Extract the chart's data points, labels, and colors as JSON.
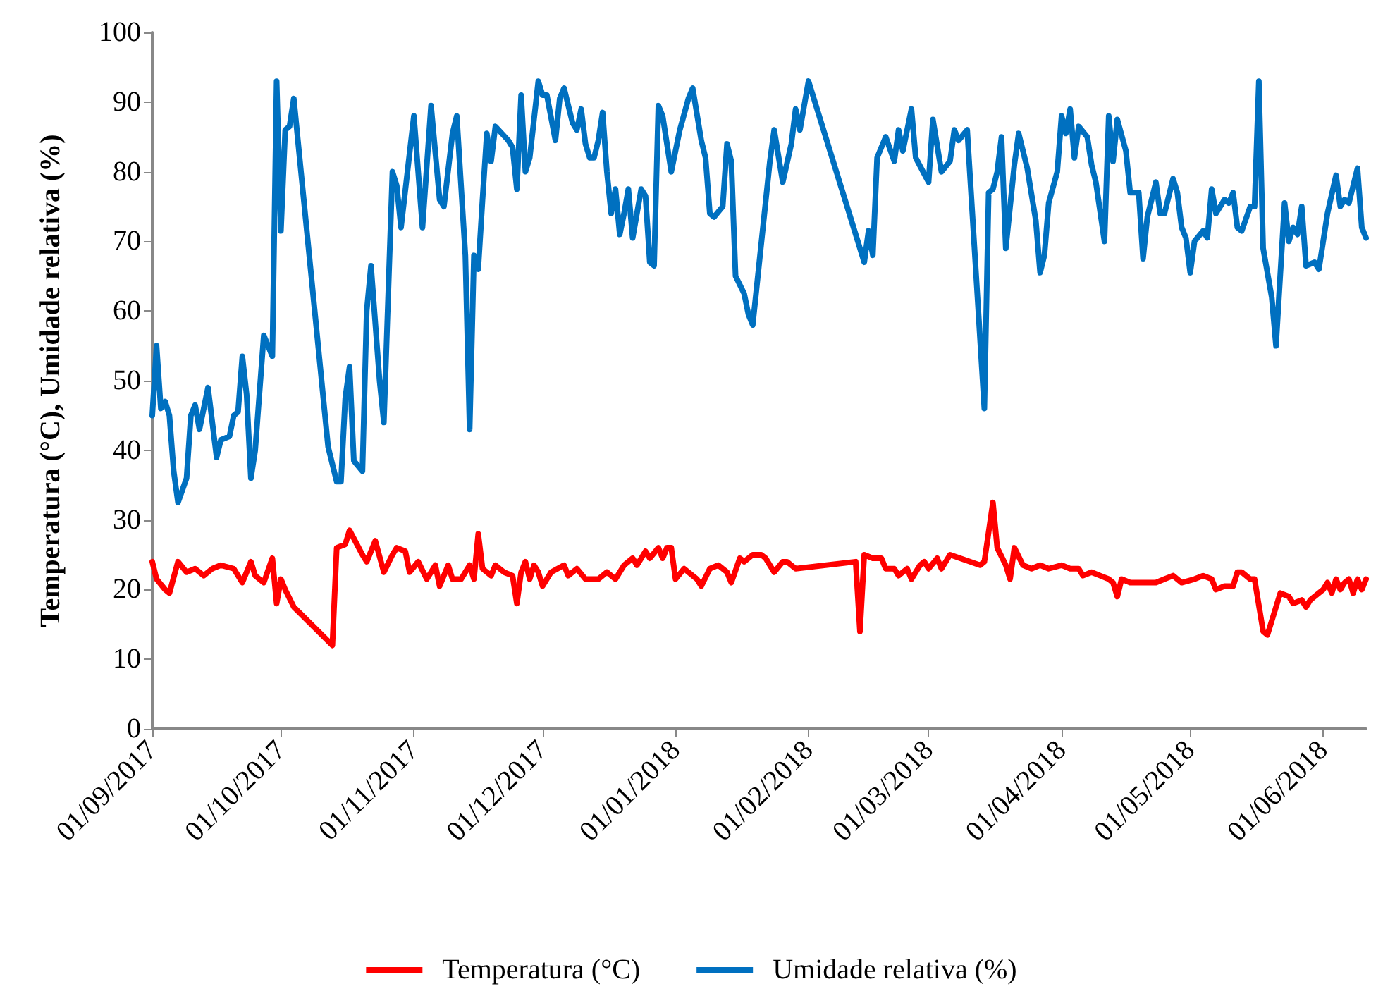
{
  "chart_data": {
    "type": "line",
    "ylabel": "Temperatura (°C), Umidade relativa (%)",
    "legend": "bottom",
    "grid": false,
    "marker": "none",
    "line_style": "solid",
    "xlim": [
      "2017-09-01",
      "2018-06-11"
    ],
    "xticks": [
      {
        "value": "2017-09-01",
        "label": "01/09/2017"
      },
      {
        "value": "2017-10-01",
        "label": "01/10/2017"
      },
      {
        "value": "2017-11-01",
        "label": "01/11/2017"
      },
      {
        "value": "2017-12-01",
        "label": "01/12/2017"
      },
      {
        "value": "2018-01-01",
        "label": "01/01/2018"
      },
      {
        "value": "2018-02-01",
        "label": "01/02/2018"
      },
      {
        "value": "2018-03-01",
        "label": "01/03/2018"
      },
      {
        "value": "2018-04-01",
        "label": "01/04/2018"
      },
      {
        "value": "2018-05-01",
        "label": "01/05/2018"
      },
      {
        "value": "2018-06-01",
        "label": "01/06/2018"
      }
    ],
    "ylim": [
      0,
      100
    ],
    "yticks": [
      0,
      10,
      20,
      30,
      40,
      50,
      60,
      70,
      80,
      90,
      100
    ],
    "series": [
      {
        "name": "Temperatura (°C)",
        "color": "#ff0000",
        "x": [
          "2017-09-01",
          "2017-09-02",
          "2017-09-04",
          "2017-09-05",
          "2017-09-07",
          "2017-09-09",
          "2017-09-11",
          "2017-09-13",
          "2017-09-15",
          "2017-09-17",
          "2017-09-20",
          "2017-09-22",
          "2017-09-24",
          "2017-09-25",
          "2017-09-27",
          "2017-09-29",
          "2017-09-30",
          "2017-10-01",
          "2017-10-02",
          "2017-10-04",
          "2017-10-13",
          "2017-10-14",
          "2017-10-16",
          "2017-10-17",
          "2017-10-20",
          "2017-10-21",
          "2017-10-23",
          "2017-10-25",
          "2017-10-27",
          "2017-10-28",
          "2017-10-30",
          "2017-10-31",
          "2017-11-02",
          "2017-11-04",
          "2017-11-06",
          "2017-11-07",
          "2017-11-09",
          "2017-11-10",
          "2017-11-12",
          "2017-11-14",
          "2017-11-15",
          "2017-11-16",
          "2017-11-17",
          "2017-11-19",
          "2017-11-20",
          "2017-11-21",
          "2017-11-22",
          "2017-11-24",
          "2017-11-25",
          "2017-11-26",
          "2017-11-27",
          "2017-11-28",
          "2017-11-29",
          "2017-11-30",
          "2017-12-01",
          "2017-12-03",
          "2017-12-06",
          "2017-12-07",
          "2017-12-09",
          "2017-12-11",
          "2017-12-14",
          "2017-12-16",
          "2017-12-18",
          "2017-12-20",
          "2017-12-22",
          "2017-12-23",
          "2017-12-25",
          "2017-12-26",
          "2017-12-28",
          "2017-12-29",
          "2017-12-30",
          "2017-12-31",
          "2018-01-01",
          "2018-01-03",
          "2018-01-06",
          "2018-01-07",
          "2018-01-09",
          "2018-01-11",
          "2018-01-13",
          "2018-01-14",
          "2018-01-16",
          "2018-01-17",
          "2018-01-19",
          "2018-01-21",
          "2018-01-22",
          "2018-01-24",
          "2018-01-26",
          "2018-01-27",
          "2018-01-29",
          "2018-02-12",
          "2018-02-13",
          "2018-02-14",
          "2018-02-16",
          "2018-02-18",
          "2018-02-19",
          "2018-02-21",
          "2018-02-22",
          "2018-02-24",
          "2018-02-25",
          "2018-02-27",
          "2018-02-28",
          "2018-03-01",
          "2018-03-03",
          "2018-03-04",
          "2018-03-06",
          "2018-03-13",
          "2018-03-14",
          "2018-03-16",
          "2018-03-17",
          "2018-03-19",
          "2018-03-20",
          "2018-03-21",
          "2018-03-23",
          "2018-03-25",
          "2018-03-27",
          "2018-03-29",
          "2018-04-01",
          "2018-04-03",
          "2018-04-05",
          "2018-04-06",
          "2018-04-08",
          "2018-04-10",
          "2018-04-12",
          "2018-04-13",
          "2018-04-14",
          "2018-04-15",
          "2018-04-17",
          "2018-04-20",
          "2018-04-23",
          "2018-04-25",
          "2018-04-27",
          "2018-04-29",
          "2018-05-02",
          "2018-05-04",
          "2018-05-06",
          "2018-05-07",
          "2018-05-09",
          "2018-05-11",
          "2018-05-12",
          "2018-05-13",
          "2018-05-15",
          "2018-05-16",
          "2018-05-18",
          "2018-05-19",
          "2018-05-21",
          "2018-05-22",
          "2018-05-24",
          "2018-05-25",
          "2018-05-27",
          "2018-05-28",
          "2018-05-29",
          "2018-06-01",
          "2018-06-02",
          "2018-06-03",
          "2018-06-04",
          "2018-06-05",
          "2018-06-06",
          "2018-06-07",
          "2018-06-08",
          "2018-06-09",
          "2018-06-10",
          "2018-06-11"
        ],
        "values": [
          24,
          21.5,
          20,
          19.5,
          24,
          22.5,
          23,
          22,
          23,
          23.5,
          23,
          21,
          24,
          22,
          21,
          24.5,
          18,
          21.5,
          20,
          17.5,
          12,
          26,
          26.5,
          28.5,
          25,
          24,
          27,
          22.5,
          25,
          26,
          25.5,
          22.5,
          24,
          21.5,
          23.5,
          20.5,
          23.5,
          21.5,
          21.5,
          23.5,
          21.5,
          28,
          23,
          22,
          23.5,
          23,
          22.5,
          22,
          18,
          22.5,
          24,
          21.5,
          23.5,
          22.5,
          20.5,
          22.5,
          23.5,
          22,
          23,
          21.5,
          21.5,
          22.5,
          21.5,
          23.5,
          24.5,
          23.5,
          25.5,
          24.5,
          26,
          24.5,
          26,
          26,
          21.5,
          23,
          21.5,
          20.5,
          23,
          23.5,
          22.5,
          21,
          24.5,
          24,
          25,
          25,
          24.5,
          22.5,
          24,
          24,
          23,
          24,
          14,
          25,
          24.5,
          24.5,
          23,
          23,
          22,
          23,
          21.5,
          23.5,
          24,
          23,
          24.5,
          23,
          25,
          23.5,
          24,
          32.5,
          26,
          23.5,
          21.5,
          26,
          23.5,
          23,
          23.5,
          23,
          23.5,
          23,
          23,
          22,
          22.5,
          22,
          21.5,
          21,
          19,
          21.5,
          21,
          21,
          21,
          21.5,
          22,
          21,
          21.5,
          22,
          21.5,
          20,
          20.5,
          20.5,
          22.5,
          22.5,
          21.5,
          21.5,
          14,
          13.5,
          17.5,
          19.5,
          19,
          18,
          18.5,
          17.5,
          18.5,
          20,
          21,
          19.5,
          21.5,
          20,
          21,
          21.5,
          19.5,
          21.5,
          20,
          21.5
        ]
      },
      {
        "name": "Umidade relativa (%)",
        "color": "#0070c0",
        "x": [
          "2017-09-01",
          "2017-09-02",
          "2017-09-03",
          "2017-09-04",
          "2017-09-05",
          "2017-09-06",
          "2017-09-07",
          "2017-09-09",
          "2017-09-10",
          "2017-09-11",
          "2017-09-12",
          "2017-09-14",
          "2017-09-16",
          "2017-09-17",
          "2017-09-19",
          "2017-09-20",
          "2017-09-21",
          "2017-09-22",
          "2017-09-23",
          "2017-09-24",
          "2017-09-25",
          "2017-09-27",
          "2017-09-29",
          "2017-09-30",
          "2017-10-01",
          "2017-10-02",
          "2017-10-03",
          "2017-10-04",
          "2017-10-12",
          "2017-10-14",
          "2017-10-15",
          "2017-10-16",
          "2017-10-17",
          "2017-10-18",
          "2017-10-20",
          "2017-10-21",
          "2017-10-22",
          "2017-10-24",
          "2017-10-25",
          "2017-10-27",
          "2017-10-28",
          "2017-10-29",
          "2017-11-01",
          "2017-11-03",
          "2017-11-05",
          "2017-11-07",
          "2017-11-08",
          "2017-11-10",
          "2017-11-11",
          "2017-11-13",
          "2017-11-14",
          "2017-11-15",
          "2017-11-16",
          "2017-11-17",
          "2017-11-18",
          "2017-11-19",
          "2017-11-20",
          "2017-11-23",
          "2017-11-24",
          "2017-11-25",
          "2017-11-26",
          "2017-11-27",
          "2017-11-28",
          "2017-11-30",
          "2017-12-01",
          "2017-12-02",
          "2017-12-04",
          "2017-12-05",
          "2017-12-06",
          "2017-12-08",
          "2017-12-09",
          "2017-12-10",
          "2017-12-11",
          "2017-12-12",
          "2017-12-13",
          "2017-12-14",
          "2017-12-15",
          "2017-12-16",
          "2017-12-17",
          "2017-12-18",
          "2017-12-19",
          "2017-12-20",
          "2017-12-21",
          "2017-12-22",
          "2017-12-24",
          "2017-12-25",
          "2017-12-26",
          "2017-12-27",
          "2017-12-28",
          "2017-12-29",
          "2017-12-31",
          "2018-01-02",
          "2018-01-04",
          "2018-01-05",
          "2018-01-07",
          "2018-01-08",
          "2018-01-09",
          "2018-01-10",
          "2018-01-12",
          "2018-01-13",
          "2018-01-14",
          "2018-01-15",
          "2018-01-17",
          "2018-01-18",
          "2018-01-19",
          "2018-01-23",
          "2018-01-24",
          "2018-01-26",
          "2018-01-28",
          "2018-01-29",
          "2018-01-30",
          "2018-02-01",
          "2018-02-14",
          "2018-02-15",
          "2018-02-16",
          "2018-02-17",
          "2018-02-19",
          "2018-02-21",
          "2018-02-22",
          "2018-02-23",
          "2018-02-25",
          "2018-02-26",
          "2018-03-01",
          "2018-03-02",
          "2018-03-04",
          "2018-03-06",
          "2018-03-07",
          "2018-03-08",
          "2018-03-10",
          "2018-03-14",
          "2018-03-15",
          "2018-03-16",
          "2018-03-17",
          "2018-03-18",
          "2018-03-19",
          "2018-03-21",
          "2018-03-22",
          "2018-03-24",
          "2018-03-26",
          "2018-03-27",
          "2018-03-28",
          "2018-03-29",
          "2018-03-31",
          "2018-04-01",
          "2018-04-02",
          "2018-04-03",
          "2018-04-04",
          "2018-04-05",
          "2018-04-07",
          "2018-04-08",
          "2018-04-09",
          "2018-04-11",
          "2018-04-12",
          "2018-04-13",
          "2018-04-14",
          "2018-04-16",
          "2018-04-17",
          "2018-04-19",
          "2018-04-20",
          "2018-04-21",
          "2018-04-23",
          "2018-04-24",
          "2018-04-25",
          "2018-04-27",
          "2018-04-28",
          "2018-04-29",
          "2018-04-30",
          "2018-05-01",
          "2018-05-02",
          "2018-05-04",
          "2018-05-05",
          "2018-05-06",
          "2018-05-07",
          "2018-05-09",
          "2018-05-10",
          "2018-05-11",
          "2018-05-12",
          "2018-05-13",
          "2018-05-15",
          "2018-05-16",
          "2018-05-17",
          "2018-05-18",
          "2018-05-20",
          "2018-05-21",
          "2018-05-23",
          "2018-05-24",
          "2018-05-25",
          "2018-05-26",
          "2018-05-27",
          "2018-05-28",
          "2018-05-30",
          "2018-05-31",
          "2018-06-02",
          "2018-06-04",
          "2018-06-05",
          "2018-06-06",
          "2018-06-07",
          "2018-06-08",
          "2018-06-09",
          "2018-06-10",
          "2018-06-11"
        ],
        "values": [
          45,
          55,
          46,
          47,
          45,
          37,
          32.5,
          36,
          45,
          46.5,
          43,
          49,
          39,
          41.5,
          42,
          45,
          45.5,
          53.5,
          48,
          36,
          40,
          56.5,
          53.5,
          93,
          71.5,
          86,
          86.5,
          90.5,
          40.5,
          35.5,
          35.5,
          47.5,
          52,
          38.5,
          37,
          60,
          66.5,
          50,
          44,
          80,
          78,
          72,
          88,
          72,
          89.5,
          76,
          75,
          85.5,
          88,
          68,
          43,
          68,
          66,
          76,
          85.5,
          81.5,
          86.5,
          84.5,
          83.5,
          77.5,
          91,
          80,
          82,
          93,
          91,
          91,
          84.5,
          90.5,
          92,
          87,
          86,
          89,
          84,
          82,
          82,
          84.5,
          88.5,
          80,
          74,
          77.5,
          71,
          74,
          77.5,
          70.5,
          77.5,
          76.5,
          67,
          66.5,
          89.5,
          88,
          80,
          86,
          90.5,
          92,
          84.5,
          82,
          74,
          73.5,
          75,
          84,
          81.5,
          65,
          62.5,
          59.5,
          58,
          81.5,
          86,
          78.5,
          84,
          89,
          86,
          93,
          67,
          71.5,
          68,
          82,
          85,
          81.5,
          86,
          83,
          89,
          82,
          78.5,
          87.5,
          80,
          81.5,
          86,
          84.5,
          86,
          46,
          77,
          77.5,
          80,
          85,
          69,
          81,
          85.5,
          80.5,
          73,
          65.5,
          68,
          75.5,
          80,
          88,
          85.5,
          89,
          82,
          86.5,
          85,
          81,
          78.5,
          70,
          88,
          81.5,
          87.5,
          83,
          77,
          77,
          67.5,
          73.5,
          78.5,
          74,
          74,
          79,
          77,
          72,
          70.5,
          65.5,
          70,
          71.5,
          70.5,
          77.5,
          74,
          76,
          75.5,
          77,
          72,
          71.5,
          75,
          75,
          93,
          69,
          62,
          55,
          75.5,
          70,
          72,
          71,
          75,
          66.5,
          67,
          66,
          74,
          79.5,
          75,
          76,
          75.5,
          78,
          80.5,
          72,
          70.5
        ]
      }
    ]
  }
}
